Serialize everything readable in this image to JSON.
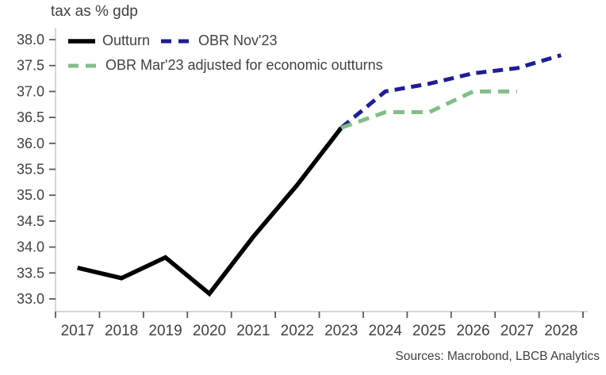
{
  "title": "tax as % gdp",
  "source_note": "Sources: Macrobond, LBCB Analytics",
  "legend": {
    "items": [
      {
        "label": "Outturn",
        "color": "#000000",
        "style": "solid"
      },
      {
        "label": "OBR Nov'23",
        "color": "#1e1e96",
        "style": "dashed"
      },
      {
        "label": "OBR Mar'23 adjusted for economic outturns",
        "color": "#82bd88",
        "style": "dashed"
      }
    ]
  },
  "chart_data": {
    "type": "line",
    "title": "tax as % gdp",
    "xlabel": "",
    "ylabel": "tax as % gdp",
    "x_ticks": [
      2017,
      2018,
      2019,
      2020,
      2021,
      2022,
      2023,
      2024,
      2025,
      2026,
      2027,
      2028
    ],
    "y_ticks": [
      33.0,
      33.5,
      34.0,
      34.5,
      35.0,
      35.5,
      36.0,
      36.5,
      37.0,
      37.5,
      38.0
    ],
    "ylim": [
      32.76,
      38.26
    ],
    "grid": false,
    "legend_position": "top-left",
    "axis_color": "#bfbfbf",
    "tick_color": "#595959",
    "text_color": "#404040",
    "series": [
      {
        "name": "Outturn",
        "color": "#000000",
        "dash": null,
        "x": [
          2017,
          2018,
          2019,
          2020,
          2021,
          2022,
          2023
        ],
        "values": [
          33.6,
          33.4,
          33.8,
          33.1,
          34.2,
          35.2,
          36.3
        ]
      },
      {
        "name": "OBR Nov'23",
        "color": "#1e1e96",
        "dash": [
          13,
          8
        ],
        "x": [
          2023,
          2024,
          2025,
          2026,
          2027,
          2028
        ],
        "values": [
          36.3,
          37.0,
          37.15,
          37.35,
          37.45,
          37.7
        ]
      },
      {
        "name": "OBR Mar'23 adjusted for economic outturns",
        "color": "#82bd88",
        "dash": [
          14,
          9
        ],
        "x": [
          2023,
          2024,
          2025,
          2026,
          2027
        ],
        "values": [
          36.3,
          36.6,
          36.6,
          37.0,
          37.0
        ]
      }
    ]
  }
}
